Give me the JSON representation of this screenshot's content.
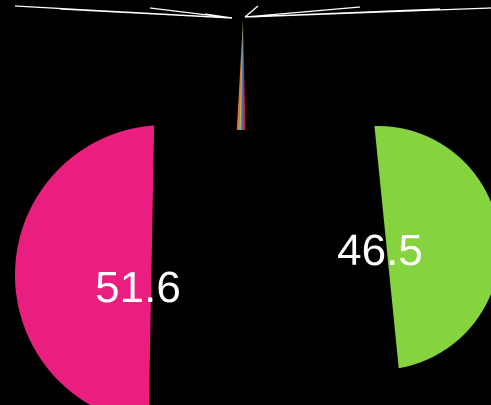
{
  "chart_data": {
    "type": "pie",
    "background": "#000000",
    "title": "",
    "slices": [
      {
        "value": 51.6,
        "label": "51.6",
        "color": "#e91e7e"
      },
      {
        "value": 46.5,
        "label": "46.5",
        "color": "#84d33f"
      },
      {
        "value": 0.5,
        "label": "",
        "color": "#cc1f1f"
      },
      {
        "value": 0.4,
        "label": "",
        "color": "#7b3fa0"
      },
      {
        "value": 0.3,
        "label": "",
        "color": "#3f6fd3"
      },
      {
        "value": 0.3,
        "label": "",
        "color": "#2aa7a0"
      },
      {
        "value": 0.2,
        "label": "",
        "color": "#d3b43f"
      },
      {
        "value": 0.2,
        "label": "",
        "color": "#d37b3f"
      }
    ],
    "leader_lines": "white",
    "legend": "none"
  }
}
